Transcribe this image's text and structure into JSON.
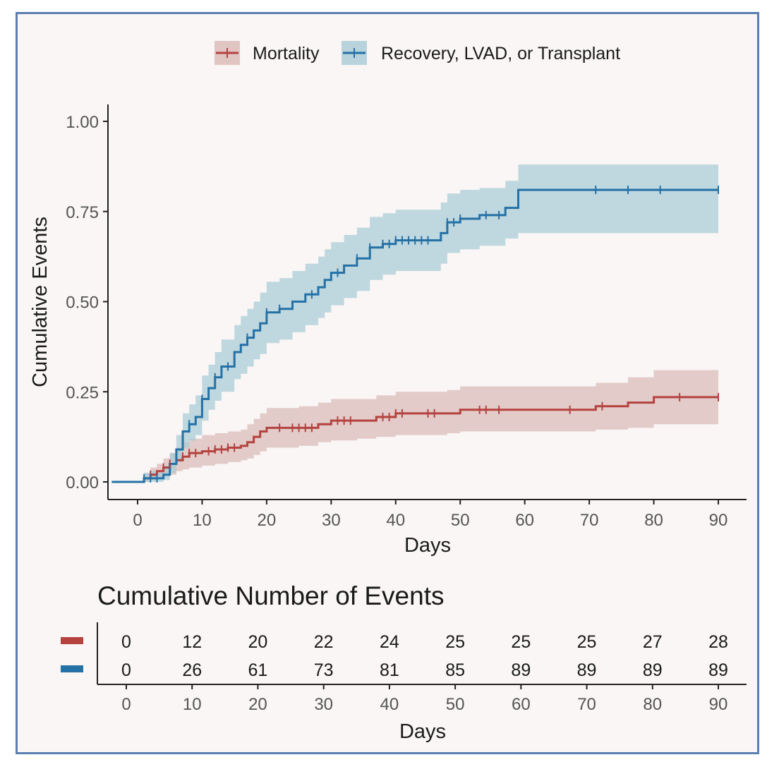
{
  "chart_data": [
    {
      "type": "line",
      "subtype": "cumulative incidence step curve with confidence bands",
      "xlabel": "Days",
      "ylabel": "Cumulative Events",
      "xlim": [
        -4,
        92
      ],
      "ylim": [
        0,
        1.05
      ],
      "xticks": [
        0,
        10,
        20,
        30,
        40,
        50,
        60,
        70,
        80,
        90
      ],
      "yticks": [
        0.0,
        0.25,
        0.5,
        0.75,
        1.0
      ],
      "ytick_labels": [
        "0.00",
        "0.25",
        "0.50",
        "0.75",
        "1.00"
      ],
      "legend": {
        "position": "top",
        "entries": [
          "Mortality",
          "Recovery, LVAD, or Transplant"
        ]
      },
      "colors": {
        "Mortality": "#b5423f",
        "Recovery, LVAD, or Transplant": "#2471a6",
        "mortality_band": "#d9b9b6",
        "recovery_band": "#a7cbd6"
      },
      "series": [
        {
          "name": "Mortality",
          "x": [
            0,
            1,
            2,
            3,
            4,
            5,
            6,
            7,
            8,
            10,
            12,
            14,
            16,
            17,
            18,
            19,
            20,
            22,
            25,
            28,
            30,
            34,
            37,
            40,
            42,
            48,
            50,
            60,
            71,
            76,
            80,
            90
          ],
          "y": [
            0,
            0.01,
            0.02,
            0.03,
            0.04,
            0.05,
            0.06,
            0.07,
            0.08,
            0.085,
            0.09,
            0.095,
            0.1,
            0.11,
            0.125,
            0.14,
            0.15,
            0.15,
            0.15,
            0.16,
            0.17,
            0.17,
            0.18,
            0.19,
            0.19,
            0.19,
            0.2,
            0.2,
            0.21,
            0.22,
            0.235,
            0.235
          ],
          "ci_lower": [
            0,
            0,
            0.005,
            0.01,
            0.015,
            0.02,
            0.03,
            0.035,
            0.04,
            0.045,
            0.05,
            0.055,
            0.06,
            0.065,
            0.075,
            0.085,
            0.095,
            0.095,
            0.1,
            0.11,
            0.115,
            0.12,
            0.125,
            0.13,
            0.13,
            0.135,
            0.14,
            0.14,
            0.145,
            0.15,
            0.16,
            0.16
          ],
          "ci_upper": [
            0,
            0.025,
            0.04,
            0.05,
            0.065,
            0.08,
            0.095,
            0.11,
            0.12,
            0.13,
            0.135,
            0.14,
            0.145,
            0.16,
            0.175,
            0.19,
            0.205,
            0.205,
            0.21,
            0.22,
            0.23,
            0.23,
            0.24,
            0.25,
            0.25,
            0.255,
            0.265,
            0.265,
            0.275,
            0.29,
            0.31,
            0.31
          ],
          "censor_marks": [
            2,
            4,
            5,
            7,
            8,
            9,
            11,
            12,
            13,
            14,
            15,
            22,
            24,
            25,
            26,
            27,
            31,
            32,
            33,
            38,
            39,
            40,
            41,
            45,
            46,
            53,
            54,
            56,
            67,
            72,
            84,
            90
          ]
        },
        {
          "name": "Recovery, LVAD, or Transplant",
          "x": [
            0,
            1,
            2,
            3,
            4,
            5,
            6,
            7,
            8,
            9,
            10,
            11,
            12,
            13,
            15,
            16,
            17,
            18,
            19,
            20,
            22,
            24,
            26,
            28,
            29,
            30,
            32,
            34,
            36,
            38,
            40,
            47,
            48,
            50,
            53,
            57,
            59,
            90
          ],
          "y": [
            0,
            0.01,
            0.01,
            0.01,
            0.02,
            0.05,
            0.09,
            0.14,
            0.16,
            0.18,
            0.23,
            0.26,
            0.29,
            0.32,
            0.36,
            0.38,
            0.4,
            0.42,
            0.44,
            0.47,
            0.48,
            0.5,
            0.52,
            0.54,
            0.56,
            0.58,
            0.6,
            0.62,
            0.65,
            0.66,
            0.67,
            0.69,
            0.72,
            0.73,
            0.74,
            0.76,
            0.81,
            0.81
          ],
          "ci_lower": [
            0,
            0,
            0,
            0,
            0.005,
            0.025,
            0.055,
            0.095,
            0.115,
            0.13,
            0.17,
            0.2,
            0.225,
            0.25,
            0.285,
            0.3,
            0.32,
            0.34,
            0.355,
            0.385,
            0.395,
            0.415,
            0.435,
            0.455,
            0.47,
            0.49,
            0.51,
            0.53,
            0.56,
            0.575,
            0.585,
            0.605,
            0.635,
            0.645,
            0.655,
            0.675,
            0.69,
            0.69
          ],
          "ci_upper": [
            0,
            0.025,
            0.03,
            0.03,
            0.045,
            0.08,
            0.13,
            0.19,
            0.215,
            0.24,
            0.295,
            0.325,
            0.36,
            0.395,
            0.435,
            0.46,
            0.48,
            0.5,
            0.525,
            0.555,
            0.565,
            0.585,
            0.605,
            0.625,
            0.645,
            0.665,
            0.685,
            0.705,
            0.735,
            0.745,
            0.755,
            0.775,
            0.8,
            0.81,
            0.815,
            0.835,
            0.88,
            0.88
          ],
          "censor_marks": [
            1,
            2,
            3,
            8,
            10,
            12,
            14,
            17,
            20,
            22,
            27,
            31,
            34,
            36,
            38,
            39,
            40,
            41,
            42,
            43,
            44,
            45,
            48,
            49,
            50,
            54,
            56,
            71,
            76,
            81,
            90
          ]
        }
      ]
    },
    {
      "type": "table",
      "title": "Cumulative Number of Events",
      "xlabel": "Days",
      "columns": [
        0,
        10,
        20,
        30,
        40,
        50,
        60,
        70,
        80,
        90
      ],
      "rows": [
        {
          "series": "Mortality",
          "color": "#b5423f",
          "values": [
            0,
            12,
            20,
            22,
            24,
            25,
            25,
            25,
            27,
            28
          ]
        },
        {
          "series": "Recovery, LVAD, or Transplant",
          "color": "#2471a6",
          "values": [
            0,
            26,
            61,
            73,
            81,
            85,
            89,
            89,
            89,
            89
          ]
        }
      ]
    }
  ]
}
